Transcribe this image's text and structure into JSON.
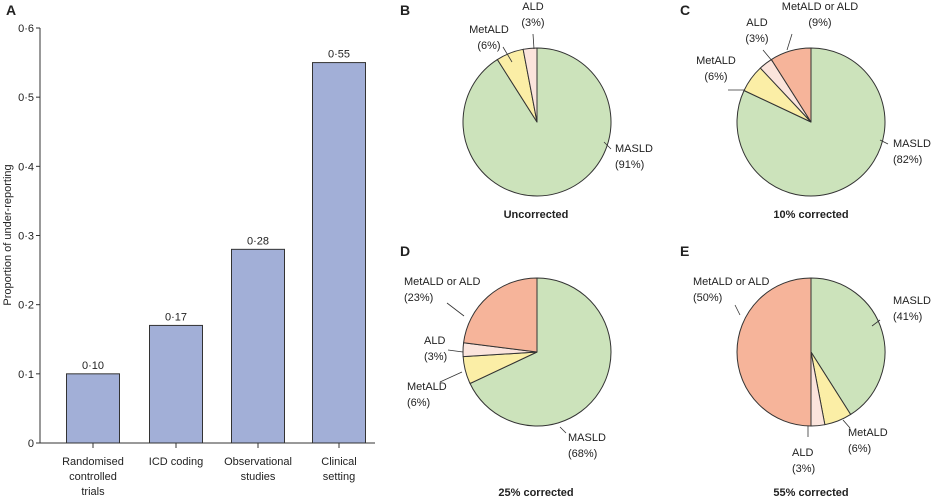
{
  "colors": {
    "bar": "#a2afd7",
    "MASLD": "#cce3bb",
    "MetALD": "#fbeea6",
    "ALD": "#fbe4dc",
    "MetALD or ALD": "#f6b49a",
    "stroke": "#333333"
  },
  "chart_data": [
    {
      "panel": "A",
      "type": "bar",
      "ylabel": "Proportion of under-reporting",
      "ylim": [
        0,
        0.6
      ],
      "yticks": [
        "0",
        "0·1",
        "0·2",
        "0·3",
        "0·4",
        "0·5",
        "0·6"
      ],
      "categories": [
        [
          "Randomised",
          "controlled",
          "trials"
        ],
        [
          "ICD coding"
        ],
        [
          "Observational",
          "studies"
        ],
        [
          "Clinical",
          "setting"
        ]
      ],
      "values": [
        0.1,
        0.17,
        0.28,
        0.55
      ],
      "value_labels": [
        "0·10",
        "0·17",
        "0·28",
        "0·55"
      ]
    },
    {
      "panel": "B",
      "type": "pie",
      "caption": "Uncorrected",
      "slices": [
        {
          "name": "MASLD",
          "value": 91,
          "label": [
            "MASLD",
            "(91%)"
          ]
        },
        {
          "name": "MetALD",
          "value": 6,
          "label": [
            "MetALD",
            "(6%)"
          ]
        },
        {
          "name": "ALD",
          "value": 3,
          "label": [
            "ALD",
            "(3%)"
          ]
        }
      ]
    },
    {
      "panel": "C",
      "type": "pie",
      "caption": "10% corrected",
      "slices": [
        {
          "name": "MASLD",
          "value": 82,
          "label": [
            "MASLD",
            "(82%)"
          ]
        },
        {
          "name": "MetALD",
          "value": 6,
          "label": [
            "MetALD",
            "(6%)"
          ]
        },
        {
          "name": "ALD",
          "value": 3,
          "label": [
            "ALD",
            "(3%)"
          ]
        },
        {
          "name": "MetALD or ALD",
          "value": 9,
          "label": [
            "MetALD or ALD",
            "(9%)"
          ]
        }
      ]
    },
    {
      "panel": "D",
      "type": "pie",
      "caption": "25% corrected",
      "slices": [
        {
          "name": "MASLD",
          "value": 68,
          "label": [
            "MASLD",
            "(68%)"
          ]
        },
        {
          "name": "MetALD",
          "value": 6,
          "label": [
            "MetALD",
            "(6%)"
          ]
        },
        {
          "name": "ALD",
          "value": 3,
          "label": [
            "ALD",
            "(3%)"
          ]
        },
        {
          "name": "MetALD or ALD",
          "value": 23,
          "label": [
            "MetALD or ALD",
            "(23%)"
          ]
        }
      ]
    },
    {
      "panel": "E",
      "type": "pie",
      "caption": "55% corrected",
      "slices": [
        {
          "name": "MASLD",
          "value": 41,
          "label": [
            "MASLD",
            "(41%)"
          ]
        },
        {
          "name": "MetALD",
          "value": 6,
          "label": [
            "MetALD",
            "(6%)"
          ]
        },
        {
          "name": "ALD",
          "value": 3,
          "label": [
            "ALD",
            "(3%)"
          ]
        },
        {
          "name": "MetALD or ALD",
          "value": 50,
          "label": [
            "MetALD or ALD",
            "(50%)"
          ]
        }
      ]
    }
  ]
}
